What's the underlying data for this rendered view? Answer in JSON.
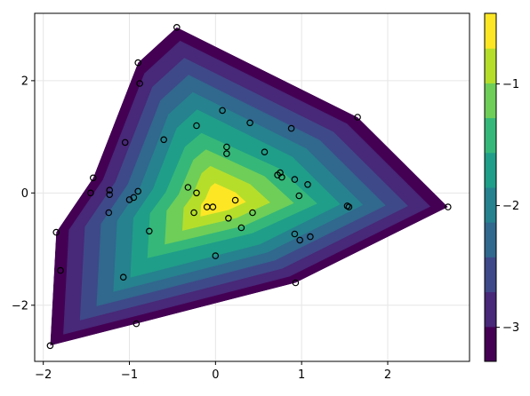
{
  "chart_data": {
    "type": "contourf",
    "title": "",
    "xlabel": "",
    "ylabel": "",
    "xlim": [
      -2.1,
      2.95
    ],
    "ylim": [
      -3.0,
      3.2
    ],
    "grid": true,
    "x_ticks": [
      -2,
      -1,
      0,
      1,
      2
    ],
    "x_tick_labels": [
      "−2",
      "−1",
      "0",
      "1",
      "2"
    ],
    "y_ticks": [
      -2,
      0,
      2
    ],
    "y_tick_labels": [
      "−2",
      "0",
      "2"
    ],
    "colorbar": {
      "placement": "right",
      "range": [
        -3.28,
        -0.42
      ],
      "levels": 10,
      "ticks": [
        -3,
        -2,
        -1
      ],
      "tick_labels": [
        "−3",
        "−2",
        "−1"
      ],
      "colors": [
        "#440154",
        "#482878",
        "#3e4989",
        "#31688e",
        "#26828e",
        "#1f9e89",
        "#35b779",
        "#6ece58",
        "#b5de2b",
        "#fde725"
      ]
    },
    "hull": [
      [
        -0.45,
        2.95
      ],
      [
        1.65,
        1.35
      ],
      [
        2.7,
        -0.25
      ],
      [
        0.93,
        -1.6
      ],
      [
        -0.92,
        -2.33
      ],
      [
        -1.92,
        -2.72
      ],
      [
        -1.85,
        -0.7
      ],
      [
        -1.42,
        0.27
      ],
      [
        -0.9,
        2.32
      ]
    ],
    "peak": {
      "x": 0.05,
      "y": -0.15
    },
    "points": [
      [
        -0.45,
        2.95
      ],
      [
        -0.9,
        2.32
      ],
      [
        -0.88,
        1.95
      ],
      [
        1.65,
        1.35
      ],
      [
        0.08,
        1.47
      ],
      [
        -0.22,
        1.2
      ],
      [
        0.4,
        1.25
      ],
      [
        0.88,
        1.15
      ],
      [
        -0.6,
        0.95
      ],
      [
        -1.05,
        0.9
      ],
      [
        0.13,
        0.82
      ],
      [
        0.13,
        0.7
      ],
      [
        0.57,
        0.73
      ],
      [
        0.72,
        0.32
      ],
      [
        0.75,
        0.36
      ],
      [
        0.77,
        0.28
      ],
      [
        0.92,
        0.24
      ],
      [
        1.07,
        0.15
      ],
      [
        -1.42,
        0.27
      ],
      [
        -1.45,
        0.0
      ],
      [
        -1.23,
        0.05
      ],
      [
        -1.23,
        -0.03
      ],
      [
        -0.9,
        0.03
      ],
      [
        -0.95,
        -0.08
      ],
      [
        -1.0,
        -0.12
      ],
      [
        -0.32,
        0.1
      ],
      [
        -0.22,
        0.0
      ],
      [
        0.23,
        -0.13
      ],
      [
        0.97,
        -0.05
      ],
      [
        2.7,
        -0.25
      ],
      [
        1.53,
        -0.23
      ],
      [
        1.55,
        -0.25
      ],
      [
        -0.03,
        -0.25
      ],
      [
        -0.1,
        -0.25
      ],
      [
        -0.25,
        -0.35
      ],
      [
        0.43,
        -0.35
      ],
      [
        0.15,
        -0.45
      ],
      [
        -1.24,
        -0.35
      ],
      [
        0.3,
        -0.62
      ],
      [
        -0.77,
        -0.68
      ],
      [
        0.92,
        -0.73
      ],
      [
        0.98,
        -0.84
      ],
      [
        1.1,
        -0.78
      ],
      [
        -1.85,
        -0.7
      ],
      [
        0.0,
        -1.12
      ],
      [
        -1.8,
        -1.38
      ],
      [
        -1.07,
        -1.5
      ],
      [
        0.93,
        -1.6
      ],
      [
        -0.92,
        -2.33
      ],
      [
        -1.92,
        -2.72
      ]
    ]
  }
}
